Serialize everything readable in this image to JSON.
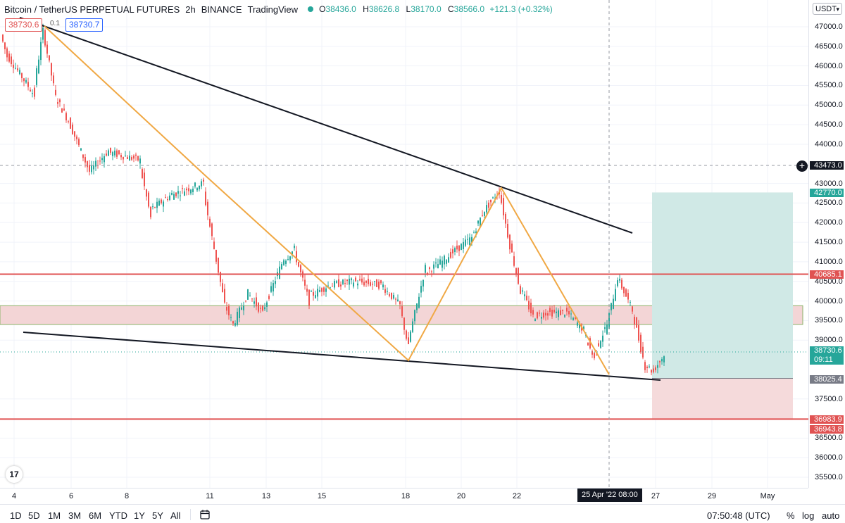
{
  "header": {
    "symbol": "Bitcoin / TetherUS PERPETUAL FUTURES",
    "interval": "2h",
    "exchange": "BINANCE",
    "source": "TradingView",
    "ohlc": {
      "o_label": "O",
      "o": "38436.0",
      "h_label": "H",
      "h": "38626.8",
      "l_label": "L",
      "l": "38170.0",
      "c_label": "C",
      "c": "38566.0",
      "change": "+121.3 (+0.32%)"
    },
    "status_color": "#26a69a"
  },
  "pills": {
    "red_price": "38730.6",
    "tiny": "0.1",
    "blue_price": "38730.7"
  },
  "logo_text": "17",
  "price_axis": {
    "currency": "USDT",
    "ticks": [
      "47000.0",
      "46500.0",
      "46000.0",
      "45500.0",
      "45000.0",
      "44500.0",
      "44000.0",
      "43000.0",
      "42500.0",
      "42000.0",
      "41500.0",
      "41000.0",
      "40500.0",
      "40000.0",
      "39500.0",
      "39000.0",
      "37500.0",
      "36500.0",
      "36000.0",
      "35500.0"
    ],
    "labels": {
      "crosshair": "43473.0",
      "target": "42770.0",
      "resistance": "40685.1",
      "last_price": "38730.6",
      "countdown": "09:11",
      "entry": "38025.4",
      "stop_a": "36983.9",
      "stop_b": "36943.8"
    }
  },
  "time_axis": {
    "ticks": [
      "4",
      "6",
      "8",
      "11",
      "13",
      "15",
      "18",
      "20",
      "22",
      "27",
      "29",
      "May"
    ],
    "cursor_label": "25 Apr '22   08:00"
  },
  "bottom_bar": {
    "ranges": [
      "1D",
      "5D",
      "1M",
      "3M",
      "6M",
      "YTD",
      "1Y",
      "5Y",
      "All"
    ],
    "clock": "07:50:48 (UTC)",
    "percent": "%",
    "log": "log",
    "auto": "auto"
  },
  "colors": {
    "up": "#26a69a",
    "down": "#ef5350",
    "trendline": "#131722",
    "zigzag": "#f0a844",
    "horizontal": "#e05252",
    "target_zone": "#d0e9e6",
    "stop_zone": "#f5dadb",
    "band": "#f3d5d6",
    "band_border": "#8bb36a"
  },
  "chart_data": {
    "type": "candlestick",
    "symbol": "BTCUSDT.P",
    "interval": "2h",
    "ylim": [
      35300,
      47300
    ],
    "x_ticks": [
      "4",
      "6",
      "8",
      "11",
      "13",
      "15",
      "18",
      "20",
      "22",
      "27",
      "29",
      "May"
    ],
    "path_points": [
      {
        "date": "Apr 4",
        "price": 46800
      },
      {
        "date": "Apr 4",
        "price": 46300
      },
      {
        "date": "Apr 5",
        "price": 45300
      },
      {
        "date": "Apr 5",
        "price": 46900
      },
      {
        "date": "Apr 6",
        "price": 45200
      },
      {
        "date": "Apr 6",
        "price": 44600
      },
      {
        "date": "Apr 7",
        "price": 43300
      },
      {
        "date": "Apr 7",
        "price": 43800
      },
      {
        "date": "Apr 8",
        "price": 43700
      },
      {
        "date": "Apr 9",
        "price": 43600
      },
      {
        "date": "Apr 9",
        "price": 42300
      },
      {
        "date": "Apr 10",
        "price": 42700
      },
      {
        "date": "Apr 10",
        "price": 43000
      },
      {
        "date": "Apr 11",
        "price": 42000
      },
      {
        "date": "Apr 11",
        "price": 39900
      },
      {
        "date": "Apr 12",
        "price": 39400
      },
      {
        "date": "Apr 12",
        "price": 40200
      },
      {
        "date": "Apr 13",
        "price": 39700
      },
      {
        "date": "Apr 13",
        "price": 41000
      },
      {
        "date": "Apr 14",
        "price": 41300
      },
      {
        "date": "Apr 14",
        "price": 40100
      },
      {
        "date": "Apr 15",
        "price": 40400
      },
      {
        "date": "Apr 16",
        "price": 40500
      },
      {
        "date": "Apr 17",
        "price": 40400
      },
      {
        "date": "Apr 17",
        "price": 39900
      },
      {
        "date": "Apr 18",
        "price": 38900
      },
      {
        "date": "Apr 18",
        "price": 40700
      },
      {
        "date": "Apr 19",
        "price": 41000
      },
      {
        "date": "Apr 19",
        "price": 41300
      },
      {
        "date": "Apr 20",
        "price": 41600
      },
      {
        "date": "Apr 20",
        "price": 42300
      },
      {
        "date": "Apr 21",
        "price": 42800
      },
      {
        "date": "Apr 21",
        "price": 41600
      },
      {
        "date": "Apr 22",
        "price": 40400
      },
      {
        "date": "Apr 22",
        "price": 39600
      },
      {
        "date": "Apr 23",
        "price": 39700
      },
      {
        "date": "Apr 24",
        "price": 39700
      },
      {
        "date": "Apr 24",
        "price": 39300
      },
      {
        "date": "Apr 25",
        "price": 38600
      },
      {
        "date": "Apr 25",
        "price": 39400
      },
      {
        "date": "Apr 26",
        "price": 40600
      },
      {
        "date": "Apr 26",
        "price": 39800
      },
      {
        "date": "Apr 26",
        "price": 38400
      },
      {
        "date": "Apr 27",
        "price": 38200
      },
      {
        "date": "Apr 27",
        "price": 38566
      }
    ],
    "horizontal_levels": [
      40685.1,
      36983.9
    ],
    "band": [
      39400,
      39880
    ],
    "position": {
      "type": "long",
      "entry": 38025.4,
      "target": 42770.0,
      "stop": 36963.85
    }
  }
}
